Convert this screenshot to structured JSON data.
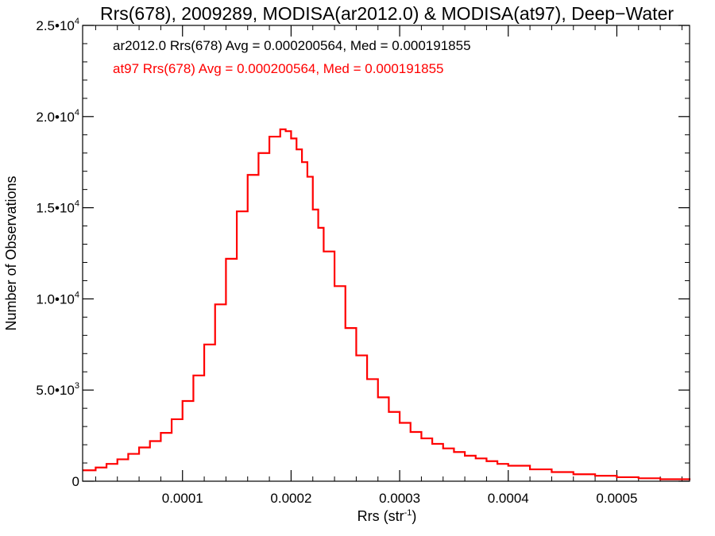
{
  "chart_data": {
    "type": "line",
    "title": "Rrs(678), 2009289, MODISA(ar2012.0) & MODISA(at97), Deep−Water",
    "xlabel": "Rrs (str",
    "xlabel_sup": "-1",
    "xlabel_close": ")",
    "ylabel": "Number of Observations",
    "xlim": [
      8e-06,
      0.000567
    ],
    "ylim": [
      0,
      25000
    ],
    "x_ticks": [
      {
        "value": 0.0001,
        "label": "0.0001"
      },
      {
        "value": 0.0002,
        "label": "0.0002"
      },
      {
        "value": 0.0003,
        "label": "0.0003"
      },
      {
        "value": 0.0004,
        "label": "0.0004"
      },
      {
        "value": 0.0005,
        "label": "0.0005"
      }
    ],
    "y_ticks": [
      {
        "value": 0,
        "mant": "0",
        "exp": ""
      },
      {
        "value": 5000,
        "mant": "5.0•10",
        "exp": "3"
      },
      {
        "value": 10000,
        "mant": "1.0•10",
        "exp": "4"
      },
      {
        "value": 15000,
        "mant": "1.5•10",
        "exp": "4"
      },
      {
        "value": 20000,
        "mant": "2.0•10",
        "exp": "4"
      },
      {
        "value": 25000,
        "mant": "2.5•10",
        "exp": "4"
      }
    ],
    "annotations": [
      {
        "text": "ar2012.0 Rrs(678) Avg = 0.000200564, Med = 0.000191855",
        "color": "#000000"
      },
      {
        "text": "at97 Rrs(678) Avg = 0.000200564, Med = 0.000191855",
        "color": "#ff0000"
      }
    ],
    "series": [
      {
        "color": "#ff0000",
        "style": "step",
        "points": [
          [
            8e-06,
            600
          ],
          [
            2e-05,
            750
          ],
          [
            3e-05,
            950
          ],
          [
            4e-05,
            1200
          ],
          [
            5e-05,
            1500
          ],
          [
            6e-05,
            1850
          ],
          [
            7e-05,
            2200
          ],
          [
            8e-05,
            2650
          ],
          [
            9e-05,
            3400
          ],
          [
            0.0001,
            4400
          ],
          [
            0.00011,
            5800
          ],
          [
            0.00012,
            7500
          ],
          [
            0.00013,
            9700
          ],
          [
            0.00014,
            12200
          ],
          [
            0.00015,
            14800
          ],
          [
            0.00016,
            16800
          ],
          [
            0.00017,
            18000
          ],
          [
            0.00018,
            18900
          ],
          [
            0.00019,
            19300
          ],
          [
            0.000195,
            19200
          ],
          [
            0.0002,
            18800
          ],
          [
            0.000205,
            18200
          ],
          [
            0.00021,
            17500
          ],
          [
            0.000215,
            16700
          ],
          [
            0.00022,
            14900
          ],
          [
            0.000225,
            13900
          ],
          [
            0.00023,
            12600
          ],
          [
            0.00024,
            10700
          ],
          [
            0.00025,
            8400
          ],
          [
            0.00026,
            6900
          ],
          [
            0.00027,
            5600
          ],
          [
            0.00028,
            4600
          ],
          [
            0.00029,
            3800
          ],
          [
            0.0003,
            3200
          ],
          [
            0.00031,
            2700
          ],
          [
            0.00032,
            2350
          ],
          [
            0.00033,
            2050
          ],
          [
            0.00034,
            1800
          ],
          [
            0.00035,
            1600
          ],
          [
            0.00036,
            1400
          ],
          [
            0.00037,
            1250
          ],
          [
            0.00038,
            1100
          ],
          [
            0.00039,
            950
          ],
          [
            0.0004,
            850
          ],
          [
            0.00042,
            650
          ],
          [
            0.00044,
            500
          ],
          [
            0.00046,
            380
          ],
          [
            0.00048,
            300
          ],
          [
            0.0005,
            220
          ],
          [
            0.00052,
            160
          ],
          [
            0.00054,
            110
          ],
          [
            0.000567,
            60
          ]
        ]
      }
    ]
  }
}
